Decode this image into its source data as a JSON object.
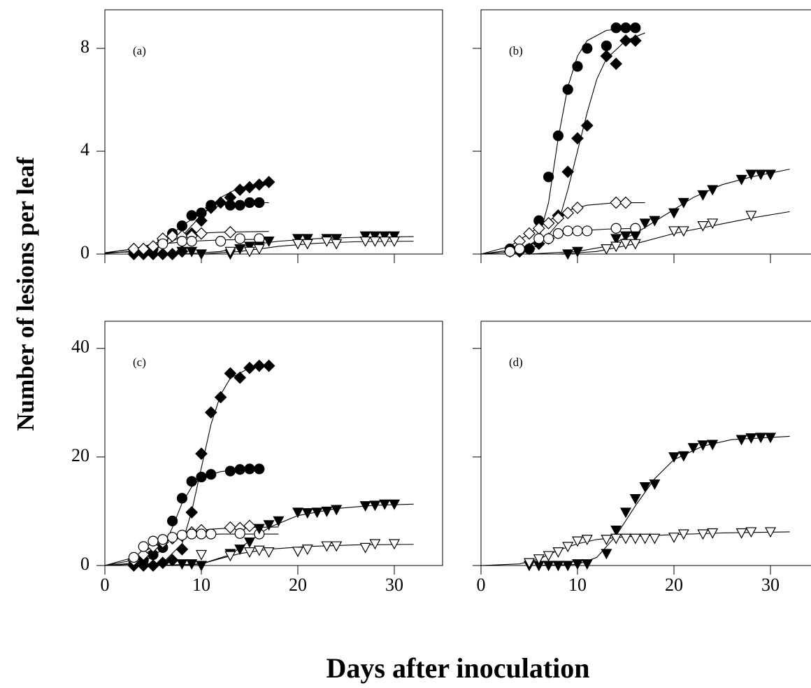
{
  "ylabel": "Number of lesions per leaf",
  "xlabel": "Days after inoculation",
  "chart_data": [
    {
      "type": "scatter",
      "label": "(a)",
      "xlim": [
        0,
        35
      ],
      "ylim": [
        0,
        9.5
      ],
      "xticks": [
        0,
        10,
        20,
        30
      ],
      "yticks": [
        0,
        4,
        8
      ],
      "xtick_labels": false,
      "ytick_labels": true,
      "series": [
        {
          "marker": "diamond",
          "filled": true,
          "x": [
            3,
            4,
            5,
            6,
            7,
            8,
            9,
            10,
            11,
            12,
            13,
            14,
            15,
            16,
            17
          ],
          "values": [
            0,
            0,
            0,
            0,
            0,
            0.1,
            0.8,
            1.3,
            1.8,
            2.0,
            2.2,
            2.5,
            2.6,
            2.7,
            2.8
          ],
          "fit_x": [
            0,
            4,
            6,
            8,
            10,
            12,
            14,
            17
          ],
          "fit_values": [
            0.05,
            0.1,
            0.3,
            0.7,
            1.5,
            2.2,
            2.6,
            2.7
          ]
        },
        {
          "marker": "circle",
          "filled": true,
          "x": [
            3,
            4,
            5,
            6,
            7,
            8,
            9,
            10,
            11,
            13,
            14,
            15,
            16
          ],
          "values": [
            0.1,
            0.1,
            0.2,
            0.5,
            0.8,
            1.1,
            1.5,
            1.6,
            1.9,
            1.9,
            1.9,
            2.0,
            2.0
          ],
          "fit_x": [
            0,
            4,
            6,
            8,
            10,
            12,
            14,
            17
          ],
          "fit_values": [
            0.02,
            0.15,
            0.5,
            1.1,
            1.6,
            1.9,
            2.0,
            2.0
          ]
        },
        {
          "marker": "diamond",
          "filled": false,
          "x": [
            3,
            4,
            5,
            6,
            7,
            8,
            9,
            10,
            13
          ],
          "values": [
            0.2,
            0.2,
            0.3,
            0.6,
            0.7,
            0.7,
            0.7,
            0.8,
            0.85
          ],
          "fit_x": [
            0,
            3,
            5,
            7,
            9,
            12,
            17
          ],
          "fit_values": [
            0.05,
            0.2,
            0.4,
            0.65,
            0.8,
            0.85,
            0.88
          ]
        },
        {
          "marker": "circle",
          "filled": false,
          "x": [
            6,
            8,
            9,
            12,
            14,
            16
          ],
          "values": [
            0.4,
            0.5,
            0.5,
            0.5,
            0.6,
            0.6
          ],
          "fit_x": [
            0,
            3,
            6,
            9,
            12,
            17
          ],
          "fit_values": [
            0.05,
            0.2,
            0.4,
            0.5,
            0.55,
            0.58
          ]
        },
        {
          "marker": "triangle",
          "filled": true,
          "x": [
            8,
            9,
            10,
            13,
            14,
            15,
            16,
            17,
            20,
            21,
            23,
            24,
            27,
            28,
            29,
            30
          ],
          "values": [
            0.1,
            0.1,
            0,
            0,
            0.2,
            0.3,
            0.3,
            0.5,
            0.6,
            0.6,
            0.6,
            0.6,
            0.7,
            0.7,
            0.7,
            0.7
          ],
          "fit_x": [
            8,
            12,
            15,
            18,
            22,
            26,
            32
          ],
          "fit_values": [
            0,
            0.1,
            0.35,
            0.5,
            0.6,
            0.65,
            0.68
          ]
        },
        {
          "marker": "triangle",
          "filled": false,
          "x": [
            13,
            15,
            16,
            20,
            21,
            23,
            24,
            27,
            28,
            29,
            30
          ],
          "values": [
            0.1,
            0.1,
            0.2,
            0.4,
            0.4,
            0.5,
            0.4,
            0.5,
            0.5,
            0.5,
            0.5
          ],
          "fit_x": [
            10,
            14,
            18,
            22,
            26,
            32
          ],
          "fit_values": [
            0,
            0.1,
            0.3,
            0.42,
            0.48,
            0.5
          ]
        }
      ]
    },
    {
      "type": "scatter",
      "label": "(b)",
      "xlim": [
        0,
        35
      ],
      "ylim": [
        0,
        9.5
      ],
      "xticks": [
        0,
        10,
        20,
        30
      ],
      "yticks": [
        0,
        4,
        8
      ],
      "xtick_labels": false,
      "ytick_labels": false,
      "series": [
        {
          "marker": "circle",
          "filled": true,
          "x": [
            3,
            4,
            5,
            6,
            7,
            8,
            9,
            10,
            11,
            13,
            14,
            15,
            16
          ],
          "values": [
            0.2,
            0.2,
            0.2,
            1.3,
            3.0,
            4.6,
            6.4,
            7.3,
            8.0,
            8.1,
            8.8,
            8.8,
            8.8
          ],
          "fit_x": [
            0,
            4,
            6,
            7,
            8,
            9,
            10,
            11,
            13,
            16
          ],
          "fit_values": [
            0,
            0.1,
            0.6,
            2,
            4.5,
            6.5,
            7.7,
            8.3,
            8.7,
            8.8
          ]
        },
        {
          "marker": "diamond",
          "filled": true,
          "x": [
            3,
            4,
            5,
            6,
            7,
            8,
            9,
            10,
            11,
            13,
            14,
            15,
            16
          ],
          "values": [
            0.1,
            0.1,
            0.2,
            0.4,
            0.6,
            1.5,
            3.2,
            4.5,
            5.0,
            7.7,
            7.4,
            8.3,
            8.3
          ],
          "fit_x": [
            0,
            6,
            8,
            9,
            10,
            11,
            12,
            13,
            15,
            17
          ],
          "fit_values": [
            0,
            0.3,
            1.2,
            2.5,
            4,
            5.5,
            6.8,
            7.6,
            8.3,
            8.6
          ]
        },
        {
          "marker": "diamond",
          "filled": false,
          "x": [
            3,
            4,
            5,
            6,
            7,
            8,
            9,
            10,
            14,
            15
          ],
          "values": [
            0.1,
            0.5,
            0.8,
            1.0,
            1.2,
            1.4,
            1.6,
            1.8,
            2.0,
            2.0
          ],
          "fit_x": [
            0,
            3,
            5,
            7,
            9,
            11,
            14,
            17
          ],
          "fit_values": [
            0,
            0.3,
            0.8,
            1.3,
            1.7,
            1.9,
            2.0,
            2.0
          ]
        },
        {
          "marker": "circle",
          "filled": false,
          "x": [
            3,
            4,
            6,
            7,
            8,
            9,
            10,
            11,
            14,
            16
          ],
          "values": [
            0.1,
            0.2,
            0.6,
            0.6,
            0.8,
            0.9,
            0.9,
            0.9,
            1.0,
            1.0
          ],
          "fit_x": [
            0,
            4,
            6,
            8,
            10,
            13,
            16
          ],
          "fit_values": [
            0,
            0.2,
            0.5,
            0.8,
            0.9,
            0.97,
            1.0
          ]
        },
        {
          "marker": "triangle",
          "filled": true,
          "x": [
            9,
            10,
            13,
            14,
            15,
            16,
            17,
            18,
            20,
            21,
            23,
            24,
            27,
            28,
            29,
            30
          ],
          "values": [
            0,
            0.1,
            0.2,
            0.6,
            0.7,
            0.7,
            1.2,
            1.3,
            1.6,
            2.0,
            2.3,
            2.5,
            2.9,
            3.1,
            3.1,
            3.1
          ],
          "fit_x": [
            5,
            10,
            13,
            16,
            19,
            22,
            25,
            28,
            32
          ],
          "fit_values": [
            0,
            0.1,
            0.3,
            0.8,
            1.5,
            2.2,
            2.7,
            3.0,
            3.3
          ]
        },
        {
          "marker": "triangle",
          "filled": false,
          "x": [
            13,
            14,
            15,
            16,
            20,
            21,
            23,
            24,
            28
          ],
          "values": [
            0.2,
            0.3,
            0.4,
            0.4,
            0.9,
            0.9,
            1.1,
            1.2,
            1.5
          ],
          "fit_x": [
            8,
            12,
            16,
            20,
            24,
            28,
            32
          ],
          "fit_values": [
            0,
            0.1,
            0.4,
            0.8,
            1.1,
            1.4,
            1.65
          ]
        }
      ]
    },
    {
      "type": "scatter",
      "label": "(c)",
      "xlim": [
        0,
        35
      ],
      "ylim": [
        0,
        45
      ],
      "xticks": [
        0,
        10,
        20,
        30
      ],
      "yticks": [
        0,
        20,
        40
      ],
      "xtick_labels": true,
      "ytick_labels": true,
      "series": [
        {
          "marker": "diamond",
          "filled": true,
          "x": [
            3,
            4,
            5,
            6,
            7,
            8,
            9,
            10,
            11,
            12,
            13,
            14,
            15,
            16,
            17
          ],
          "values": [
            0,
            0,
            0,
            0.5,
            1,
            3,
            9.8,
            20.6,
            28.2,
            31,
            35.4,
            34.6,
            36.4,
            36.8,
            36.8
          ],
          "fit_x": [
            0,
            6,
            8,
            9,
            10,
            11,
            12,
            13,
            15,
            17
          ],
          "fit_values": [
            0,
            0.5,
            4,
            10,
            18,
            26,
            31.5,
            34.5,
            36.4,
            37
          ]
        },
        {
          "marker": "circle",
          "filled": true,
          "x": [
            3,
            4,
            5,
            6,
            7,
            8,
            9,
            10,
            11,
            13,
            14,
            15,
            16
          ],
          "values": [
            0.5,
            1,
            2,
            3.3,
            8.2,
            12.4,
            15.5,
            16.3,
            16.8,
            17.4,
            17.7,
            17.8,
            17.8
          ],
          "fit_x": [
            0,
            4,
            6,
            7,
            8,
            9,
            10,
            12,
            14,
            16
          ],
          "fit_values": [
            0,
            0.6,
            3,
            7,
            11.5,
            14.5,
            16.2,
            17.3,
            17.7,
            17.8
          ]
        },
        {
          "marker": "diamond",
          "filled": false,
          "x": [
            3,
            4,
            5,
            6,
            7,
            8,
            9,
            10,
            13,
            14,
            15
          ],
          "values": [
            1,
            2,
            3.5,
            4.3,
            5,
            5.5,
            6.1,
            6.5,
            7,
            6.9,
            7.3
          ],
          "fit_x": [
            0,
            3,
            5,
            7,
            9,
            11,
            14,
            18
          ],
          "fit_values": [
            0,
            1,
            3,
            5,
            6.2,
            6.7,
            7,
            7.1
          ]
        },
        {
          "marker": "circle",
          "filled": false,
          "x": [
            3,
            4,
            5,
            6,
            7,
            8,
            9,
            10,
            11,
            14,
            16
          ],
          "values": [
            1.5,
            3.5,
            4.5,
            4.8,
            5.2,
            5.6,
            5.8,
            5.8,
            5.8,
            5.9,
            5.8
          ],
          "fit_x": [
            0,
            3,
            5,
            7,
            9,
            12,
            18
          ],
          "fit_values": [
            0,
            1.5,
            3.5,
            5,
            5.6,
            5.8,
            5.8
          ]
        },
        {
          "marker": "triangle",
          "filled": true,
          "x": [
            8,
            9,
            10,
            13,
            14,
            15,
            16,
            17,
            18,
            20,
            21,
            22,
            23,
            24,
            27,
            28,
            29,
            30
          ],
          "values": [
            0.3,
            0.3,
            0,
            2.2,
            3,
            4.3,
            6.8,
            7.5,
            8.2,
            9.8,
            9.7,
            9.8,
            10,
            10.3,
            11,
            11.1,
            11.3,
            11.3
          ],
          "fit_x": [
            5,
            10,
            13,
            15,
            17,
            20,
            24,
            28,
            32
          ],
          "fit_values": [
            0,
            0.3,
            2,
            4.5,
            7,
            9.2,
            10.5,
            11.1,
            11.3
          ]
        },
        {
          "marker": "triangle",
          "filled": false,
          "x": [
            10,
            13,
            15,
            16,
            17,
            20,
            21,
            23,
            24,
            27,
            28,
            30
          ],
          "values": [
            2,
            1.8,
            2.5,
            2.8,
            2.5,
            2.6,
            3,
            3.6,
            3.6,
            3.3,
            4,
            4
          ],
          "fit_x": [
            8,
            10,
            12,
            14,
            17,
            21,
            26,
            32
          ],
          "fit_values": [
            0,
            0.3,
            1.3,
            2.2,
            3,
            3.5,
            3.8,
            3.9
          ]
        }
      ]
    },
    {
      "type": "scatter",
      "label": "(d)",
      "xlim": [
        0,
        35
      ],
      "ylim": [
        0,
        45
      ],
      "xticks": [
        0,
        10,
        20,
        30
      ],
      "yticks": [
        0,
        20,
        40
      ],
      "xtick_labels": true,
      "ytick_labels": false,
      "series": [
        {
          "marker": "triangle",
          "filled": true,
          "x": [
            5,
            6,
            7,
            8,
            9,
            10,
            11,
            13,
            14,
            15,
            16,
            17,
            18,
            20,
            21,
            22,
            23,
            24,
            27,
            28,
            29,
            30
          ],
          "values": [
            0,
            0,
            0,
            0,
            0,
            0.3,
            0.3,
            2.2,
            6.5,
            9.8,
            12.3,
            14.5,
            15,
            20,
            20.2,
            21.7,
            22.2,
            22.3,
            23.2,
            23.5,
            23.6,
            23.6
          ],
          "fit_x": [
            5,
            10,
            12,
            14,
            16,
            18,
            20,
            23,
            26,
            32
          ],
          "fit_values": [
            0,
            0.2,
            1.5,
            5.5,
            11,
            16,
            19.5,
            22,
            23.2,
            23.8
          ]
        },
        {
          "marker": "triangle",
          "filled": false,
          "x": [
            5,
            6,
            7,
            8,
            9,
            10,
            11,
            13,
            14,
            15,
            16,
            17,
            18,
            20,
            21,
            23,
            24,
            27,
            28,
            30
          ],
          "values": [
            0.5,
            1.2,
            1.8,
            2.5,
            3.5,
            4.5,
            4.8,
            4.8,
            5,
            5,
            5,
            5,
            5,
            5.2,
            5.8,
            5.8,
            6,
            6,
            6.2,
            6.2
          ],
          "fit_x": [
            0,
            4,
            6,
            8,
            10,
            12,
            15,
            20,
            25,
            32
          ],
          "fit_values": [
            0,
            0.3,
            1.2,
            2.8,
            4,
            4.8,
            5.3,
            5.7,
            6,
            6.2
          ]
        }
      ]
    }
  ]
}
